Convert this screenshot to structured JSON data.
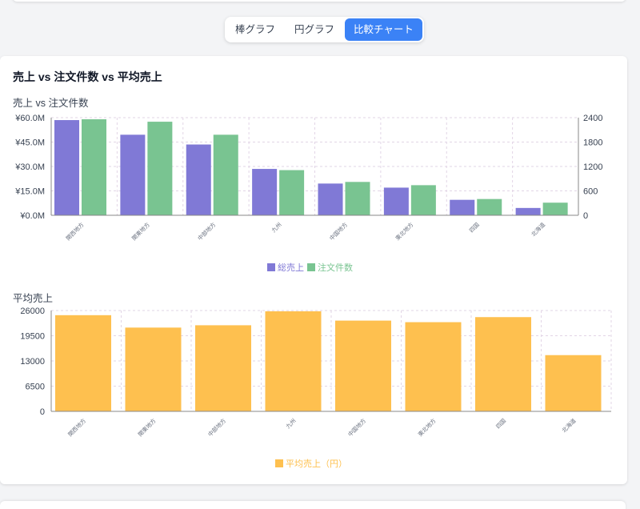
{
  "tabs": [
    {
      "label": "棒グラフ",
      "active": false
    },
    {
      "label": "円グラフ",
      "active": false
    },
    {
      "label": "比較チャート",
      "active": true
    }
  ],
  "card": {
    "title": "売上 vs 注文件数 vs 平均売上",
    "chart1_title": "売上 vs 注文件数",
    "chart2_title": "平均売上"
  },
  "colors": {
    "sales": "#8079d6",
    "orders": "#79c491",
    "avg": "#fec04f",
    "accent": "#3b82f6"
  },
  "chart_data": [
    {
      "type": "bar",
      "title": "売上 vs 注文件数",
      "categories": [
        "関西地方",
        "関東地方",
        "中部地方",
        "九州",
        "中国地方",
        "東北地方",
        "四国",
        "北海道"
      ],
      "series": [
        {
          "name": "総売上",
          "axis": "left",
          "values": [
            58.5,
            49.5,
            43.5,
            28.5,
            19.5,
            17.0,
            9.5,
            4.5
          ]
        },
        {
          "name": "注文件数",
          "axis": "right",
          "values": [
            2360,
            2300,
            1980,
            1110,
            820,
            740,
            400,
            310
          ]
        }
      ],
      "y_left": {
        "min": 0,
        "max": 60,
        "ticks": [
          "¥0.0M",
          "¥15.0M",
          "¥30.0M",
          "¥45.0M",
          "¥60.0M"
        ],
        "tick_values": [
          0,
          15,
          30,
          45,
          60
        ]
      },
      "y_right": {
        "min": 0,
        "max": 2400,
        "ticks": [
          "0",
          "600",
          "1200",
          "1800",
          "2400"
        ],
        "tick_values": [
          0,
          600,
          1200,
          1800,
          2400
        ]
      },
      "grid": true,
      "legend": "bottom-center"
    },
    {
      "type": "bar",
      "title": "平均売上",
      "categories": [
        "関西地方",
        "関東地方",
        "中部地方",
        "九州",
        "中国地方",
        "東北地方",
        "四国",
        "北海道"
      ],
      "series": [
        {
          "name": "平均売上（円）",
          "values": [
            24800,
            21600,
            22200,
            25800,
            23400,
            23000,
            24300,
            14500
          ]
        }
      ],
      "y": {
        "min": 0,
        "max": 26000,
        "ticks": [
          "0",
          "6500",
          "13000",
          "19500",
          "26000"
        ],
        "tick_values": [
          0,
          6500,
          13000,
          19500,
          26000
        ]
      },
      "grid": true,
      "legend": "bottom-center"
    }
  ]
}
